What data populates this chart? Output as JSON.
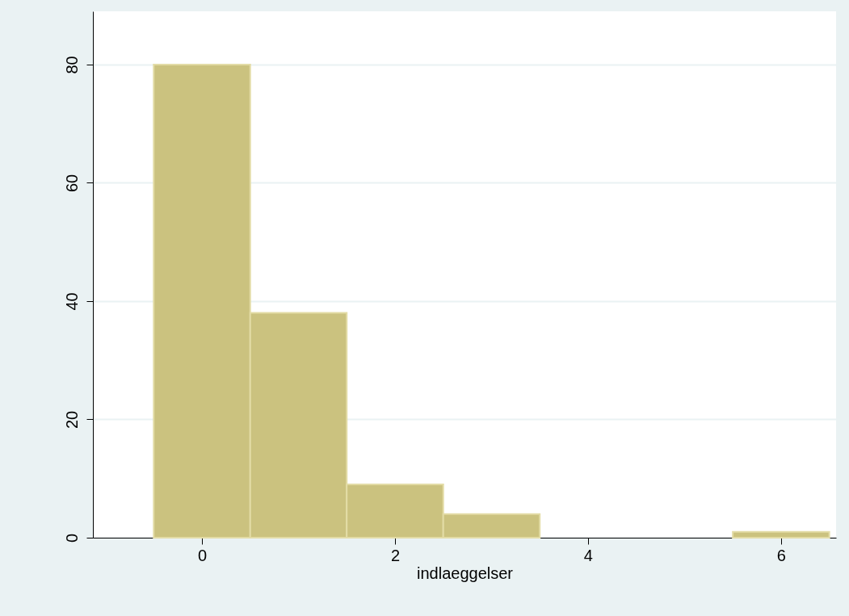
{
  "chart_data": {
    "type": "histogram",
    "xlabel": "indlaeggelser",
    "bins": [
      -0.5,
      0.5,
      1.5,
      2.5,
      3.5,
      4.5,
      5.5,
      6.5
    ],
    "values": [
      80,
      38,
      9,
      4,
      0,
      0,
      1
    ],
    "color": "#cbc27f",
    "xlim": [
      -1.13,
      6.57
    ],
    "ylim": [
      0,
      89
    ],
    "xticks": [
      0,
      2,
      4,
      6
    ],
    "yticks": [
      0,
      20,
      40,
      60,
      80
    ],
    "grid": "y"
  }
}
